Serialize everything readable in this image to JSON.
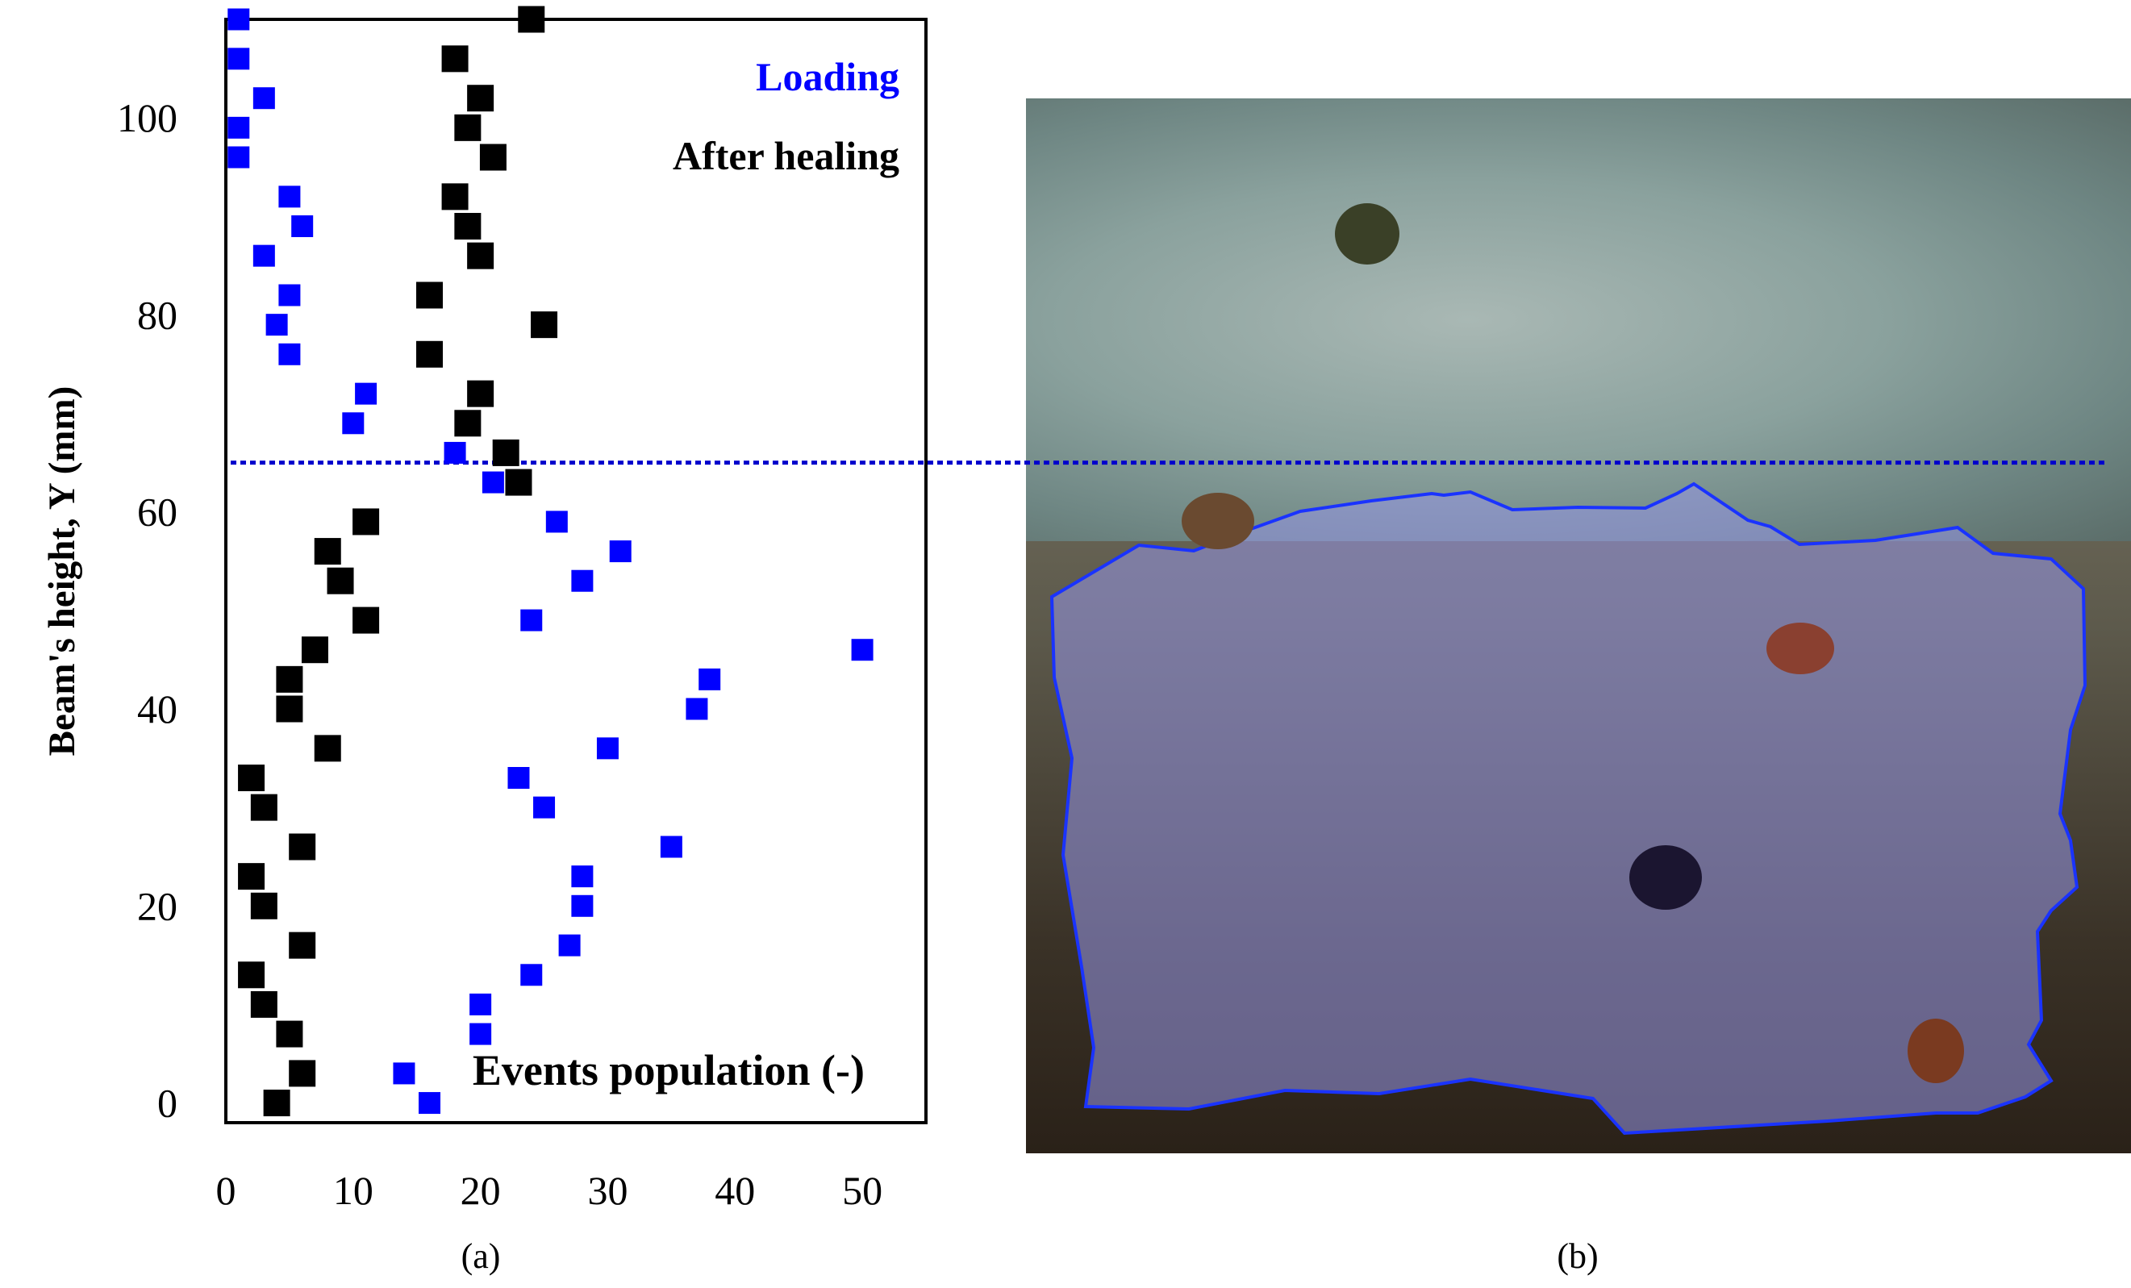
{
  "chart_data": {
    "type": "scatter",
    "xlabel": "Events population (-)",
    "ylabel": "Beam's height, Y (mm)",
    "xlim": [
      0,
      55
    ],
    "ylim": [
      -2,
      110
    ],
    "xticks": [
      0,
      10,
      20,
      30,
      40,
      50
    ],
    "yticks": [
      0,
      20,
      40,
      60,
      80,
      100
    ],
    "grid": false,
    "legend_position": "top-right",
    "reference_line_y": 65,
    "series": [
      {
        "name": "Loading",
        "color": "#0000ff",
        "points": [
          [
            1,
            110
          ],
          [
            1,
            106
          ],
          [
            3,
            102
          ],
          [
            1,
            99
          ],
          [
            1,
            96
          ],
          [
            5,
            92
          ],
          [
            6,
            89
          ],
          [
            3,
            86
          ],
          [
            5,
            82
          ],
          [
            4,
            79
          ],
          [
            5,
            76
          ],
          [
            11,
            72
          ],
          [
            10,
            69
          ],
          [
            18,
            66
          ],
          [
            21,
            63
          ],
          [
            26,
            59
          ],
          [
            31,
            56
          ],
          [
            28,
            53
          ],
          [
            24,
            49
          ],
          [
            50,
            46
          ],
          [
            38,
            43
          ],
          [
            37,
            40
          ],
          [
            30,
            36
          ],
          [
            23,
            33
          ],
          [
            25,
            30
          ],
          [
            35,
            26
          ],
          [
            28,
            23
          ],
          [
            28,
            20
          ],
          [
            27,
            16
          ],
          [
            24,
            13
          ],
          [
            20,
            10
          ],
          [
            20,
            7
          ],
          [
            14,
            3
          ],
          [
            16,
            0
          ]
        ]
      },
      {
        "name": "After healing",
        "color": "#000000",
        "points": [
          [
            24,
            110
          ],
          [
            18,
            106
          ],
          [
            20,
            102
          ],
          [
            19,
            99
          ],
          [
            21,
            96
          ],
          [
            18,
            92
          ],
          [
            19,
            89
          ],
          [
            20,
            86
          ],
          [
            16,
            82
          ],
          [
            25,
            79
          ],
          [
            16,
            76
          ],
          [
            20,
            72
          ],
          [
            19,
            69
          ],
          [
            22,
            66
          ],
          [
            23,
            63
          ],
          [
            11,
            59
          ],
          [
            8,
            56
          ],
          [
            9,
            53
          ],
          [
            11,
            49
          ],
          [
            7,
            46
          ],
          [
            5,
            43
          ],
          [
            5,
            40
          ],
          [
            8,
            36
          ],
          [
            2,
            33
          ],
          [
            3,
            30
          ],
          [
            6,
            26
          ],
          [
            2,
            23
          ],
          [
            3,
            20
          ],
          [
            6,
            16
          ],
          [
            2,
            13
          ],
          [
            3,
            10
          ],
          [
            5,
            7
          ],
          [
            6,
            3
          ],
          [
            4,
            0
          ]
        ]
      }
    ]
  },
  "panel_labels": {
    "a": "(a)",
    "b": "(b)"
  },
  "colors": {
    "reference_line": "#0000cc",
    "outline": "#1a33ff"
  }
}
